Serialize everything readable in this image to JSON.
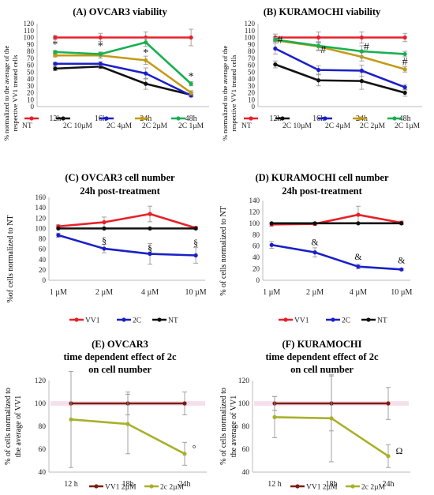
{
  "figure": {
    "common": {
      "colors": {
        "red": "#e8202a",
        "black": "#111111",
        "blue": "#1a20c8",
        "gold": "#c49a14",
        "green": "#18b050",
        "brown": "#7a1f12",
        "olive": "#a8b02a",
        "band": "#f4dcea"
      }
    }
  },
  "chart_data": [
    {
      "id": "A",
      "type": "line",
      "title": "(A) OVCAR3 viability",
      "ylabel": "% normalized to the average of the respective VV1 treated cells",
      "ylabel_lines": [
        "% normalized to the average of the",
        "respective VV1 treated cells"
      ],
      "categories": [
        "12h",
        "16h",
        "24h",
        "48h"
      ],
      "ylim": [
        0,
        120
      ],
      "yticks": [
        0,
        10,
        20,
        30,
        40,
        50,
        60,
        70,
        80,
        90,
        100,
        110,
        120
      ],
      "grid": false,
      "legend_position": "bottom",
      "legend_entries": [
        "NT",
        "2C 10µM",
        "2C 4µM",
        "2C 2µM",
        "2C 1µM"
      ],
      "series": [
        {
          "name": "NT",
          "color": "red",
          "values": [
            100,
            100,
            100,
            100
          ],
          "err": [
            3,
            6,
            8,
            12
          ]
        },
        {
          "name": "2C 10µM",
          "color": "black",
          "values": [
            55,
            58,
            33,
            17
          ],
          "err": [
            3,
            3,
            8,
            3
          ]
        },
        {
          "name": "2C 4µM",
          "color": "blue",
          "values": [
            62,
            62,
            48,
            16
          ],
          "err": [
            2,
            3,
            8,
            2
          ]
        },
        {
          "name": "2C 2µM",
          "color": "gold",
          "values": [
            74,
            74,
            67,
            20
          ],
          "err": [
            2,
            4,
            6,
            3
          ]
        },
        {
          "name": "2C 1µM",
          "color": "green",
          "values": [
            79,
            76,
            93,
            33
          ],
          "err": [
            2,
            3,
            6,
            3
          ]
        }
      ],
      "annotations": [
        {
          "text": "*",
          "cat": 0,
          "y": 85
        },
        {
          "text": "*",
          "cat": 1,
          "y": 83
        },
        {
          "text": "*",
          "cat": 2,
          "y": 73
        },
        {
          "text": "*",
          "cat": 3,
          "y": 39
        }
      ]
    },
    {
      "id": "B",
      "type": "line",
      "title": "(B) KURAMOCHI viability",
      "ylabel": "% normalized to the average of the respective VV1 treated cells",
      "ylabel_lines": [
        "% normalized to the average of the",
        "respective VV1 treated cells"
      ],
      "categories": [
        "12h",
        "16h",
        "24h",
        "48h"
      ],
      "ylim": [
        0,
        120
      ],
      "yticks": [
        0,
        10,
        20,
        30,
        40,
        50,
        60,
        70,
        80,
        90,
        100,
        110,
        120
      ],
      "grid": false,
      "legend_position": "bottom",
      "legend_entries": [
        "NT",
        "2C 10µM",
        "2C 4µM",
        "2C 2µM",
        "2C 1µM"
      ],
      "series": [
        {
          "name": "NT",
          "color": "red",
          "values": [
            100,
            100,
            100,
            100
          ],
          "err": [
            5,
            8,
            8,
            6
          ]
        },
        {
          "name": "2C 10µM",
          "color": "black",
          "values": [
            61,
            38,
            37,
            20
          ],
          "err": [
            5,
            8,
            12,
            5
          ]
        },
        {
          "name": "2C 4µM",
          "color": "blue",
          "values": [
            84,
            53,
            52,
            28
          ],
          "err": [
            8,
            6,
            8,
            4
          ]
        },
        {
          "name": "2C 2µM",
          "color": "gold",
          "values": [
            96,
            87,
            72,
            54
          ],
          "err": [
            4,
            6,
            6,
            4
          ]
        },
        {
          "name": "2C 1µM",
          "color": "green",
          "values": [
            97,
            88,
            80,
            76
          ],
          "err": [
            3,
            6,
            8,
            4
          ]
        }
      ],
      "annotations": [
        {
          "text": "#",
          "cat": 0,
          "y": 92,
          "dx": 6
        },
        {
          "text": "#",
          "cat": 1,
          "y": 78,
          "dx": 6
        },
        {
          "text": "#",
          "cat": 2,
          "y": 82,
          "dx": 6
        },
        {
          "text": "#",
          "cat": 3,
          "y": 60,
          "dx": 0
        }
      ]
    },
    {
      "id": "C",
      "type": "line",
      "title": "(C) OVCAR3 cell number",
      "subtitle": "24h post-treatment",
      "ylabel": "%of cells  normalized to NT",
      "categories": [
        "1 µM",
        "2 µM",
        "4 µM",
        "10 µM"
      ],
      "ylim": [
        0,
        160
      ],
      "yticks": [
        0,
        20,
        40,
        60,
        80,
        100,
        120,
        140,
        160
      ],
      "grid": false,
      "legend_position": "bottom",
      "legend_entries": [
        "VV1",
        "2C",
        "NT"
      ],
      "series": [
        {
          "name": "VV1",
          "color": "red",
          "values": [
            104,
            112,
            128,
            101
          ],
          "err": [
            3,
            10,
            15,
            3
          ]
        },
        {
          "name": "2C",
          "color": "blue",
          "values": [
            87,
            61,
            51,
            48
          ],
          "err": [
            4,
            8,
            20,
            15
          ]
        },
        {
          "name": "NT",
          "color": "black",
          "values": [
            100,
            100,
            100,
            100
          ],
          "err": [
            0,
            0,
            0,
            0
          ]
        }
      ],
      "annotations": [
        {
          "text": "§",
          "cat": 1,
          "y": 71
        },
        {
          "text": "§",
          "cat": 2,
          "y": 56
        },
        {
          "text": "§",
          "cat": 3,
          "y": 66
        }
      ]
    },
    {
      "id": "D",
      "type": "line",
      "title": "(D) KURAMOCHI cell number",
      "subtitle": "24h post-treatment",
      "ylabel": "% of cells  normalized to NT",
      "categories": [
        "1 µM",
        "2 µM",
        "4 µM",
        "10 µM"
      ],
      "ylim": [
        0,
        140
      ],
      "yticks": [
        0,
        20,
        40,
        60,
        80,
        100,
        120,
        140
      ],
      "grid": false,
      "legend_position": "bottom",
      "legend_entries": [
        "VV1",
        "2C",
        "NT"
      ],
      "series": [
        {
          "name": "VV1",
          "color": "red",
          "values": [
            98,
            99,
            115,
            101
          ],
          "err": [
            3,
            3,
            15,
            3
          ]
        },
        {
          "name": "2C",
          "color": "blue",
          "values": [
            62,
            49,
            24,
            19
          ],
          "err": [
            6,
            8,
            4,
            2
          ]
        },
        {
          "name": "NT",
          "color": "black",
          "values": [
            100,
            100,
            100,
            100
          ],
          "err": [
            0,
            0,
            0,
            0
          ]
        }
      ],
      "annotations": [
        {
          "text": "&",
          "cat": 1,
          "y": 62
        },
        {
          "text": "&",
          "cat": 2,
          "y": 36
        },
        {
          "text": "&",
          "cat": 3,
          "y": 30
        }
      ]
    },
    {
      "id": "E",
      "type": "line",
      "title": "(E) OVCAR3",
      "subtitle": "time dependent effect of 2c",
      "subtitle2": "on cell number",
      "ylabel": "% of cells normalized to the average of VV1",
      "ylabel_lines": [
        "% of cells normalized to",
        "the average of  VV1"
      ],
      "categories": [
        "12 h",
        "18h",
        "24h"
      ],
      "ylim": [
        40,
        120
      ],
      "yticks": [
        40,
        60,
        80,
        100,
        120
      ],
      "grid": false,
      "band": [
        98,
        102
      ],
      "legend_position": "bottom",
      "legend_entries": [
        "VV1 2µM",
        "2c 2µM"
      ],
      "series": [
        {
          "name": "VV1 2µM",
          "color": "brown",
          "values": [
            100,
            100,
            100
          ],
          "err": [
            0,
            0,
            0
          ]
        },
        {
          "name": "2c 2µM",
          "color": "olive",
          "values": [
            86,
            82,
            56
          ],
          "err": [
            42,
            26,
            10
          ]
        }
      ],
      "err_vv1_up": [
        0,
        10,
        10
      ],
      "annotations": [
        {
          "text": "°",
          "cat": 2,
          "y": 58,
          "dx": 12
        }
      ]
    },
    {
      "id": "F",
      "type": "line",
      "title": "(F) KURAMOCHI",
      "subtitle": "time dependent effect of 2c",
      "subtitle2": "on cell number",
      "ylabel": "% of cells normalized to the average of VV1",
      "ylabel_lines": [
        "% of cells normalized to",
        "the average of  VV1"
      ],
      "categories": [
        "12 h",
        "18h",
        "24h"
      ],
      "ylim": [
        40,
        120
      ],
      "yticks": [
        40,
        60,
        80,
        100,
        120
      ],
      "grid": false,
      "band": [
        98,
        102
      ],
      "legend_position": "bottom",
      "legend_entries": [
        "VV1 2µM",
        "2c 2µM"
      ],
      "series": [
        {
          "name": "VV1 2µM",
          "color": "brown",
          "values": [
            100,
            100,
            100
          ],
          "err": [
            0,
            0,
            0
          ]
        },
        {
          "name": "2c 2µM",
          "color": "olive",
          "values": [
            88,
            87,
            54
          ],
          "err": [
            18,
            38,
            10
          ]
        }
      ],
      "err_vv1_up": [
        6,
        24,
        14
      ],
      "annotations": [
        {
          "text": "Ω",
          "cat": 2,
          "y": 56,
          "dx": 14
        }
      ]
    }
  ]
}
